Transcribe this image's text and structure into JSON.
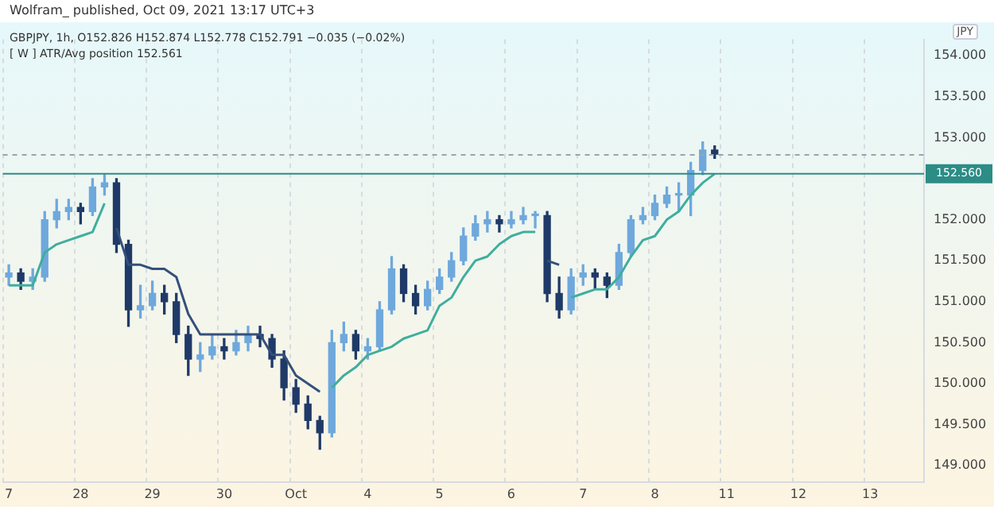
{
  "chart_data": {
    "type": "candlestick",
    "title": "Wolfram_ published, Oct 09, 2021 13:17 UTC+3",
    "annotations": [
      "GBPJPY, 1h, O152.826 H152.874 L152.778 C152.791 −0.035 (−0.02%)",
      "[ W ] ATR/Avg position 152.561"
    ],
    "ylabel": "JPY",
    "categories": [
      "7",
      null,
      null,
      null,
      null,
      null,
      "28",
      null,
      null,
      null,
      null,
      null,
      "29",
      null,
      null,
      null,
      null,
      null,
      "30",
      null,
      null,
      null,
      null,
      null,
      "Oct",
      null,
      null,
      null,
      null,
      null,
      "4",
      null,
      null,
      null,
      null,
      null,
      "5",
      null,
      null,
      null,
      null,
      null,
      "6",
      null,
      null,
      null,
      null,
      null,
      "7",
      null,
      null,
      null,
      null,
      null,
      "8",
      null,
      null,
      null,
      null,
      null,
      "11",
      null,
      null,
      null,
      null,
      null,
      "12",
      null,
      null,
      null,
      null,
      null,
      "13",
      null,
      null,
      null,
      null
    ],
    "ohlc": [
      [
        151.3,
        151.45,
        151.2,
        151.35
      ],
      [
        151.35,
        151.4,
        151.15,
        151.25
      ],
      [
        151.25,
        151.4,
        151.15,
        151.3
      ],
      [
        151.3,
        152.1,
        151.25,
        152.0
      ],
      [
        152.0,
        152.25,
        151.9,
        152.1
      ],
      [
        152.1,
        152.25,
        152.0,
        152.15
      ],
      [
        152.15,
        152.2,
        151.95,
        152.1
      ],
      [
        152.1,
        152.5,
        152.05,
        152.4
      ],
      [
        152.4,
        152.56,
        152.3,
        152.45
      ],
      [
        152.45,
        152.5,
        151.6,
        151.7
      ],
      [
        151.7,
        151.75,
        150.7,
        150.9
      ],
      [
        150.9,
        151.2,
        150.8,
        150.95
      ],
      [
        150.95,
        151.25,
        150.9,
        151.1
      ],
      [
        151.1,
        151.2,
        150.85,
        151.0
      ],
      [
        151.0,
        151.1,
        150.5,
        150.6
      ],
      [
        150.6,
        150.7,
        150.1,
        150.3
      ],
      [
        150.3,
        150.5,
        150.15,
        150.35
      ],
      [
        150.35,
        150.6,
        150.3,
        150.45
      ],
      [
        150.45,
        150.55,
        150.3,
        150.4
      ],
      [
        150.4,
        150.65,
        150.35,
        150.5
      ],
      [
        150.5,
        150.7,
        150.4,
        150.6
      ],
      [
        150.6,
        150.7,
        150.45,
        150.55
      ],
      [
        150.55,
        150.6,
        150.2,
        150.3
      ],
      [
        150.3,
        150.4,
        149.8,
        149.95
      ],
      [
        149.95,
        150.05,
        149.65,
        149.75
      ],
      [
        149.75,
        149.85,
        149.45,
        149.55
      ],
      [
        149.55,
        149.6,
        149.2,
        149.4
      ],
      [
        149.4,
        150.65,
        149.35,
        150.5
      ],
      [
        150.5,
        150.75,
        150.4,
        150.6
      ],
      [
        150.6,
        150.65,
        150.3,
        150.4
      ],
      [
        150.4,
        150.55,
        150.3,
        150.45
      ],
      [
        150.45,
        151.0,
        150.4,
        150.9
      ],
      [
        150.9,
        151.55,
        150.85,
        151.4
      ],
      [
        151.4,
        151.45,
        151.0,
        151.1
      ],
      [
        151.1,
        151.2,
        150.85,
        150.95
      ],
      [
        150.95,
        151.25,
        150.9,
        151.15
      ],
      [
        151.15,
        151.4,
        151.1,
        151.3
      ],
      [
        151.3,
        151.6,
        151.25,
        151.5
      ],
      [
        151.5,
        151.9,
        151.45,
        151.8
      ],
      [
        151.8,
        152.05,
        151.75,
        151.95
      ],
      [
        151.95,
        152.1,
        151.85,
        152.0
      ],
      [
        152.0,
        152.05,
        151.85,
        151.95
      ],
      [
        151.95,
        152.1,
        151.9,
        152.0
      ],
      [
        152.0,
        152.15,
        151.95,
        152.05
      ],
      [
        152.05,
        152.1,
        151.9,
        152.05
      ],
      [
        152.05,
        152.1,
        151.0,
        151.1
      ],
      [
        151.1,
        151.3,
        150.8,
        150.9
      ],
      [
        150.9,
        151.4,
        150.85,
        151.3
      ],
      [
        151.3,
        151.45,
        151.2,
        151.35
      ],
      [
        151.35,
        151.4,
        151.15,
        151.3
      ],
      [
        151.3,
        151.35,
        151.05,
        151.2
      ],
      [
        151.2,
        151.7,
        151.15,
        151.6
      ],
      [
        151.6,
        152.05,
        151.55,
        152.0
      ],
      [
        152.0,
        152.15,
        151.95,
        152.05
      ],
      [
        152.05,
        152.3,
        152.0,
        152.2
      ],
      [
        152.2,
        152.4,
        152.15,
        152.3
      ],
      [
        152.3,
        152.45,
        152.1,
        152.3
      ],
      [
        152.3,
        152.7,
        152.05,
        152.6
      ],
      [
        152.6,
        152.95,
        152.55,
        152.85
      ],
      [
        152.85,
        152.9,
        152.75,
        152.8
      ],
      null,
      null,
      null,
      null,
      null,
      null,
      null,
      null,
      null,
      null,
      null,
      null,
      null,
      null,
      null,
      null,
      null
    ],
    "colors": [
      "#6fa8dc",
      "#1f3a68",
      "#6fa8dc",
      "#6fa8dc",
      "#6fa8dc",
      "#6fa8dc",
      "#1f3a68",
      "#6fa8dc",
      "#6fa8dc",
      "#1f3a68",
      "#1f3a68",
      "#6fa8dc",
      "#6fa8dc",
      "#1f3a68",
      "#1f3a68",
      "#1f3a68",
      "#6fa8dc",
      "#6fa8dc",
      "#1f3a68",
      "#6fa8dc",
      "#6fa8dc",
      "#1f3a68",
      "#1f3a68",
      "#1f3a68",
      "#1f3a68",
      "#1f3a68",
      "#1f3a68",
      "#6fa8dc",
      "#6fa8dc",
      "#1f3a68",
      "#6fa8dc",
      "#6fa8dc",
      "#6fa8dc",
      "#1f3a68",
      "#1f3a68",
      "#6fa8dc",
      "#6fa8dc",
      "#6fa8dc",
      "#6fa8dc",
      "#6fa8dc",
      "#6fa8dc",
      "#1f3a68",
      "#6fa8dc",
      "#6fa8dc",
      "#6fa8dc",
      "#1f3a68",
      "#1f3a68",
      "#6fa8dc",
      "#6fa8dc",
      "#1f3a68",
      "#1f3a68",
      "#6fa8dc",
      "#6fa8dc",
      "#6fa8dc",
      "#6fa8dc",
      "#6fa8dc",
      "#6fa8dc",
      "#6fa8dc",
      "#6fa8dc",
      "#1f3a68",
      null,
      null,
      null,
      null,
      null,
      null,
      null,
      null,
      null,
      null,
      null,
      null,
      null,
      null,
      null,
      null,
      null
    ],
    "series": [
      {
        "type": "line",
        "color": "#3fae9e",
        "values": [
          151.2,
          151.2,
          151.2,
          151.6,
          151.7,
          151.75,
          151.8,
          151.85,
          152.2,
          null,
          null,
          null,
          null,
          null,
          null,
          null,
          null,
          null,
          null,
          null,
          null,
          null,
          null,
          null,
          null,
          null,
          null,
          149.95,
          150.1,
          150.2,
          150.35,
          150.4,
          150.45,
          150.55,
          150.6,
          150.65,
          150.95,
          151.05,
          151.3,
          151.5,
          151.55,
          151.7,
          151.8,
          151.85,
          151.85,
          null,
          null,
          151.05,
          151.1,
          151.15,
          151.15,
          151.3,
          151.55,
          151.75,
          151.8,
          152.0,
          152.1,
          152.3,
          152.45,
          152.56,
          null,
          null,
          null,
          null,
          null,
          null,
          null,
          null,
          null,
          null,
          null,
          null,
          null,
          null,
          null,
          null,
          null
        ]
      },
      {
        "type": "line",
        "color": "#34507a",
        "values": [
          null,
          null,
          null,
          null,
          null,
          null,
          null,
          null,
          null,
          151.9,
          151.45,
          151.45,
          151.4,
          151.4,
          151.3,
          150.85,
          150.6,
          150.6,
          150.6,
          150.6,
          150.6,
          150.6,
          150.35,
          150.35,
          150.1,
          150.0,
          149.9,
          null,
          null,
          null,
          null,
          null,
          null,
          null,
          null,
          null,
          null,
          null,
          null,
          null,
          null,
          null,
          null,
          null,
          null,
          151.5,
          151.45,
          null,
          null,
          null,
          null,
          null,
          null,
          null,
          null,
          null,
          null,
          null,
          null,
          null,
          null,
          null,
          null,
          null,
          null,
          null,
          null,
          null,
          null,
          null,
          null,
          null,
          null,
          null,
          null,
          null,
          null
        ]
      }
    ],
    "ylim": [
      148.8,
      154.2
    ],
    "yticks": [
      {
        "value": 149,
        "label": "149.000"
      },
      {
        "value": 149.5,
        "label": "149.500"
      },
      {
        "value": 150,
        "label": "150.000"
      },
      {
        "value": 150.5,
        "label": "150.500"
      },
      {
        "value": 151,
        "label": "151.000"
      },
      {
        "value": 151.5,
        "label": "151.500"
      },
      {
        "value": 152,
        "label": "152.000"
      },
      {
        "value": 153,
        "label": "153.000"
      },
      {
        "value": 153.5,
        "label": "153.500"
      },
      {
        "value": 154,
        "label": "154.000"
      }
    ],
    "ref_lines": [
      {
        "axis": "y",
        "value": 152.56,
        "label": "152.560",
        "color": "#2c8c86"
      },
      {
        "axis": "y",
        "value": 152.79,
        "color": "#9aa4ae",
        "line_style": "dashed"
      }
    ],
    "grid": "x",
    "legend": false,
    "marker": "none"
  }
}
